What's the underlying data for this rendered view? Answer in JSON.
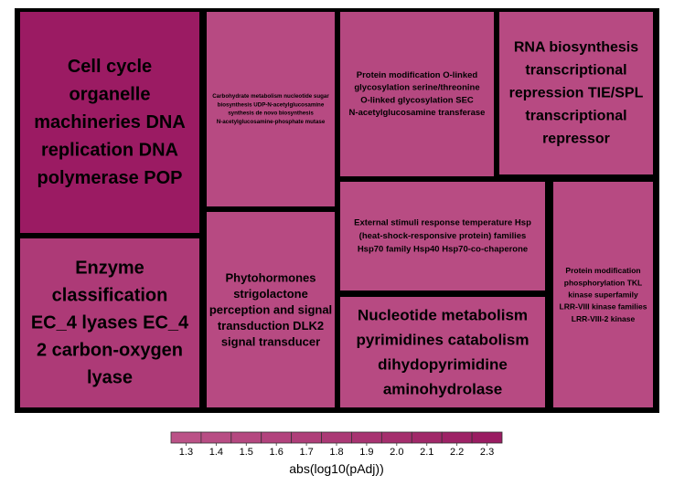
{
  "chart_data": {
    "type": "treemap",
    "tiles": [
      {
        "id": "cell-cycle",
        "lines": [
          "Cell cycle",
          "organelle",
          "machineries DNA",
          "replication DNA",
          "polymerase POP"
        ],
        "value": 2.3,
        "color": "#9b1b63"
      },
      {
        "id": "enzyme",
        "lines": [
          "Enzyme",
          "classification",
          "EC_4 lyases EC_4",
          "2 carbon-oxygen",
          "lyase"
        ],
        "value": 1.95,
        "color": "#ad3a77"
      },
      {
        "id": "carbohydrate",
        "lines": [
          "Carbohydrate metabolism nucleotide sugar",
          "biosynthesis UDP-N-acetylglucosamine",
          "synthesis de novo biosynthesis",
          "N-acetylglucosamine-phosphate mutase"
        ],
        "value": 1.6,
        "color": "#b74a82"
      },
      {
        "id": "phytohormones",
        "lines": [
          "Phytohormones",
          "strigolactone",
          "perception and signal",
          "transduction DLK2",
          "signal transducer"
        ],
        "value": 1.6,
        "color": "#b74a82"
      },
      {
        "id": "protein-glyco",
        "lines": [
          "Protein modification O-linked",
          "glycosylation serine/threonine",
          "O-linked glycosylation SEC",
          "N-acetylglucosamine transferase"
        ],
        "value": 1.65,
        "color": "#b54880"
      },
      {
        "id": "rna",
        "lines": [
          "RNA biosynthesis",
          "transcriptional",
          "repression TIE/SPL",
          "transcriptional",
          "repressor"
        ],
        "value": 1.6,
        "color": "#b74a82"
      },
      {
        "id": "external",
        "lines": [
          "External stimuli response temperature Hsp",
          "(heat-shock-responsive protein) families",
          "Hsp70 family Hsp40 Hsp70-co-chaperone"
        ],
        "value": 1.55,
        "color": "#b84c83"
      },
      {
        "id": "protein-phospho",
        "lines": [
          "Protein modification",
          "phosphorylation TKL",
          "kinase superfamily",
          "LRR-VIII kinase families",
          "LRR-VIII-2 kinase"
        ],
        "value": 1.6,
        "color": "#b74a82"
      },
      {
        "id": "nucleotide",
        "lines": [
          "Nucleotide metabolism",
          "pyrimidines catabolism",
          "dihydopyrimidine",
          "aminohydrolase"
        ],
        "value": 1.6,
        "color": "#b74a82"
      }
    ],
    "legend": {
      "title": "abs(log10(pAdj))",
      "ticks": [
        "1.3",
        "1.4",
        "1.5",
        "1.6",
        "1.7",
        "1.8",
        "1.9",
        "2.0",
        "2.1",
        "2.2",
        "2.3"
      ],
      "range": [
        1.3,
        2.3
      ],
      "colors": [
        "#bb5287",
        "#b84d84",
        "#b54880",
        "#b2437d",
        "#af3e79",
        "#ab3975",
        "#a83371",
        "#a52e6d",
        "#a12869",
        "#9e2266",
        "#9a1c62"
      ]
    }
  }
}
